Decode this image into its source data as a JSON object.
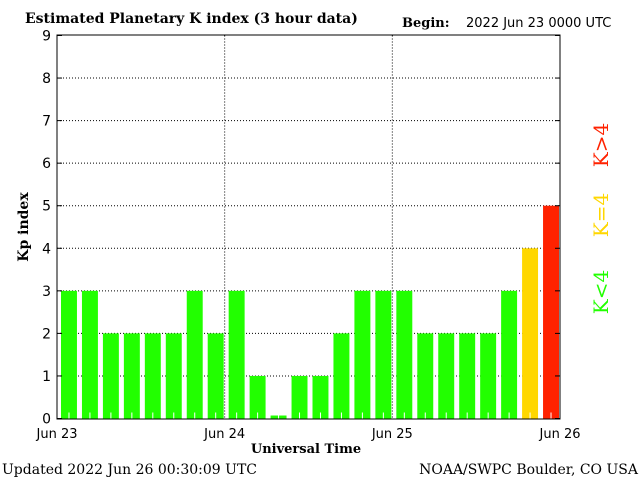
{
  "chart_data": {
    "type": "bar",
    "title": "Estimated Planetary K index (3 hour data)",
    "begin_label": "Begin:",
    "begin_value": "2022 Jun 23 0000 UTC",
    "xlabel": "Universal Time",
    "ylabel": "Kp index",
    "ylim": [
      0,
      9
    ],
    "yticks": [
      "0",
      "1",
      "2",
      "3",
      "4",
      "5",
      "6",
      "7",
      "8",
      "9"
    ],
    "xticks": [
      "Jun 23",
      "Jun 24",
      "Jun 25",
      "Jun 26"
    ],
    "grid": true,
    "values": [
      3,
      3,
      2,
      2,
      2,
      2,
      3,
      2,
      3,
      1,
      0.07,
      1,
      1,
      2,
      3,
      3,
      3,
      2,
      2,
      2,
      2,
      3,
      4,
      5
    ],
    "colors": {
      "below": "#22ff00",
      "equal": "#ffd700",
      "above": "#ff2200"
    },
    "legend": [
      {
        "label": "K<4",
        "color": "#22ff00"
      },
      {
        "label": "K=4",
        "color": "#ffd700"
      },
      {
        "label": "K>4",
        "color": "#ff2200"
      }
    ]
  },
  "footer": {
    "updated": "Updated 2022 Jun 26 00:30:09 UTC",
    "credit": "NOAA/SWPC Boulder, CO USA"
  }
}
